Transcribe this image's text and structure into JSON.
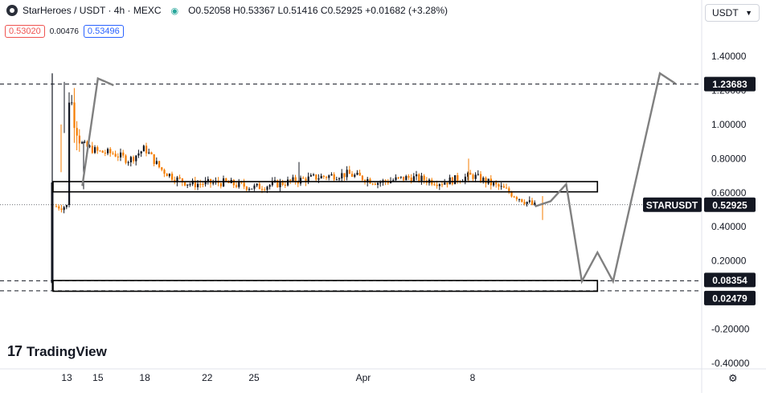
{
  "header": {
    "symbol": "StarHeroes / USDT · 4h · MEXC",
    "ohlc": "O0.52058 H0.53367 L0.51416 C0.52925 +0.01682 (+3.28%)",
    "bid": "0.53020",
    "spread": "0.00476",
    "ask": "0.53496",
    "currency": "USDT"
  },
  "branding": {
    "name": "TradingView",
    "mark": "17"
  },
  "icons": {
    "logo": "starheroes-logo-icon",
    "eye": "eye-icon",
    "chevron": "chevron-down-icon",
    "settings": "gear-icon"
  },
  "colors": {
    "up": "#131722",
    "down": "#f57c00",
    "axis": "#131722",
    "box": "#000000",
    "projection": "#808080"
  },
  "chart_data": {
    "type": "candlestick",
    "title": "",
    "xlabel": "",
    "ylabel": "",
    "ylim": [
      -0.42,
      1.49
    ],
    "x_ticks": [
      "13",
      "18",
      "25",
      "Apr",
      "8",
      "15",
      "22"
    ],
    "y_ticks": [
      "1.40000",
      "1.20000",
      "1.00000",
      "0.80000",
      "0.60000",
      "0.40000",
      "0.20000",
      "0.00000",
      "-0.20000",
      "-0.40000"
    ],
    "price_labels": [
      {
        "label": "",
        "value": "1.23683",
        "style": "dark"
      },
      {
        "label": "STARUSDT",
        "value": "0.52925",
        "style": "dark"
      },
      {
        "label": "",
        "value": "0.08354",
        "style": "dark"
      },
      {
        "label": "",
        "value": "0.02479",
        "style": "dark"
      }
    ],
    "horizontal_levels": [
      1.23683,
      0.08354,
      0.02479
    ],
    "last_price": 0.52925,
    "zones": [
      {
        "from_date": "Mar 13",
        "to_date": "Apr 16",
        "low": 0.605,
        "high": 0.665
      },
      {
        "from_date": "Mar 13",
        "to_date": "Apr 16",
        "low": 0.022,
        "high": 0.085
      }
    ],
    "initial_wick": {
      "date": "Mar 12",
      "low": 0.025,
      "high": 1.3,
      "open": 0.07,
      "close": 0.66
    },
    "price_path": [
      {
        "date": "Mar 13",
        "price": 0.63
      },
      {
        "date": "Mar 13",
        "price": 1.23
      },
      {
        "date": "Mar 14",
        "price": 0.88
      },
      {
        "date": "Mar 15",
        "price": 0.84
      },
      {
        "date": "Mar 16",
        "price": 0.83
      },
      {
        "date": "Mar 17",
        "price": 0.79
      },
      {
        "date": "Mar 18",
        "price": 0.86
      },
      {
        "date": "Mar 19",
        "price": 0.74
      },
      {
        "date": "Mar 20",
        "price": 0.68
      },
      {
        "date": "Mar 21",
        "price": 0.65
      },
      {
        "date": "Mar 23",
        "price": 0.66
      },
      {
        "date": "Mar 25",
        "price": 0.63
      },
      {
        "date": "Mar 27",
        "price": 0.66
      },
      {
        "date": "Mar 29",
        "price": 0.69
      },
      {
        "date": "Mar 31",
        "price": 0.71
      },
      {
        "date": "Apr 2",
        "price": 0.66
      },
      {
        "date": "Apr 4",
        "price": 0.69
      },
      {
        "date": "Apr 6",
        "price": 0.66
      },
      {
        "date": "Apr 8",
        "price": 0.7
      },
      {
        "date": "Apr 9",
        "price": 0.66
      },
      {
        "date": "Apr 10",
        "price": 0.62
      },
      {
        "date": "Apr 11",
        "price": 0.57
      },
      {
        "date": "Apr 12",
        "price": 0.52
      }
    ],
    "projections": [
      {
        "points": [
          [
            "Mar 14",
            0.64
          ],
          [
            "Mar 15",
            1.27
          ],
          [
            "Mar 16",
            1.23
          ]
        ]
      },
      {
        "points": [
          [
            "Apr 12",
            0.52
          ],
          [
            "Apr 13",
            0.55
          ],
          [
            "Apr 14",
            0.65
          ],
          [
            "Apr 15",
            0.08
          ],
          [
            "Apr 16",
            0.25
          ],
          [
            "Apr 17",
            0.08
          ],
          [
            "Apr 20",
            1.3
          ],
          [
            "Apr 21",
            1.24
          ]
        ]
      }
    ]
  }
}
